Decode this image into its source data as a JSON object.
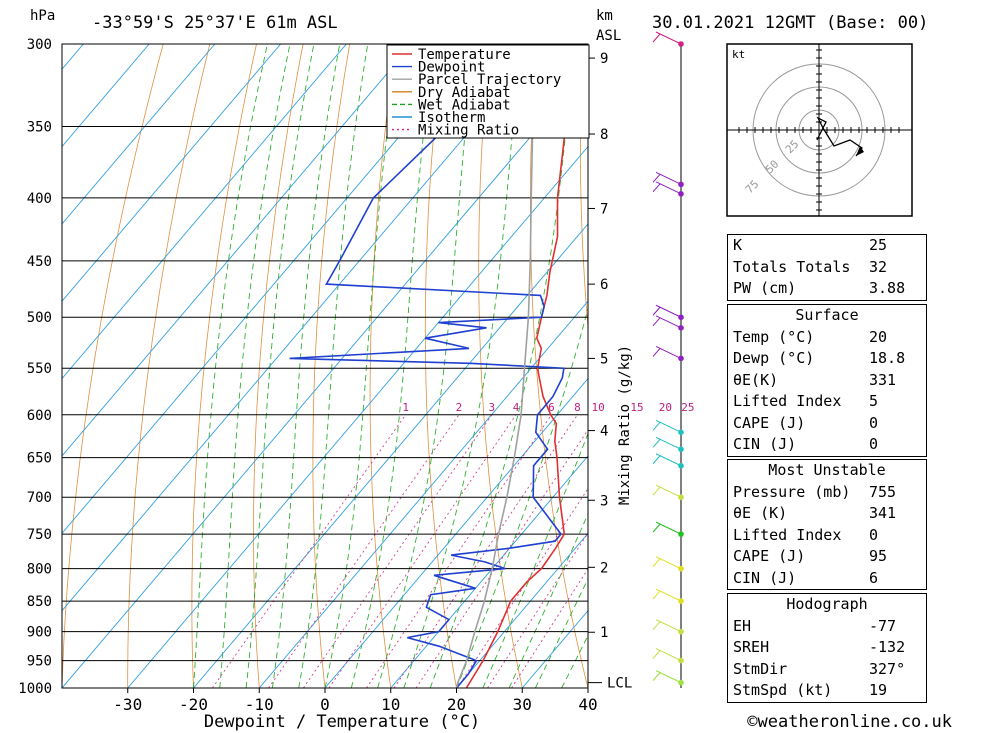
{
  "header": {
    "location": "-33°59'S  25°37'E  61m  ASL",
    "datetime": "30.01.2021  12GMT  (Base: 00)",
    "hpa_unit": "hPa",
    "km_unit": "km",
    "asl_unit": "ASL"
  },
  "footer": {
    "copyright": "©weatheronline.co.uk"
  },
  "chart_data": {
    "type": "line",
    "xlabel": "Dewpoint / Temperature (°C)",
    "ylabel": "hPa",
    "right_label": "Mixing Ratio (g/kg)",
    "xlim": [
      -40,
      40
    ],
    "ylim": [
      1000,
      300
    ],
    "x_ticks": [
      -30,
      -20,
      -10,
      0,
      10,
      20,
      30,
      40
    ],
    "pressure_levels": [
      300,
      350,
      400,
      450,
      500,
      550,
      600,
      650,
      700,
      750,
      800,
      850,
      900,
      950,
      1000
    ],
    "km_ticks": [
      {
        "km": "1",
        "p": 901
      },
      {
        "km": "2",
        "p": 798
      },
      {
        "km": "3",
        "p": 704
      },
      {
        "km": "4",
        "p": 618
      },
      {
        "km": "5",
        "p": 540
      },
      {
        "km": "6",
        "p": 470
      },
      {
        "km": "7",
        "p": 408
      },
      {
        "km": "8",
        "p": 355
      },
      {
        "km": "9",
        "p": 308
      }
    ],
    "lcl_label": "LCL",
    "lcl_p": 990,
    "mixing_ratio_labels": [
      "1",
      "2",
      "3",
      "4",
      "6",
      "8",
      "10",
      "15",
      "20",
      "25"
    ],
    "legend": [
      "Temperature",
      "Dewpoint",
      "Parcel Trajectory",
      "Dry Adiabat",
      "Wet Adiabat",
      "Isotherm",
      "Mixing Ratio"
    ],
    "legend_colors": [
      "#e03030",
      "#2040d0",
      "#a0a0a0",
      "#d08020",
      "#20a020",
      "#2090d0",
      "#d02080"
    ],
    "series": [
      {
        "name": "Temperature",
        "color": "#e03030",
        "points": [
          [
            1000,
            21.5
          ],
          [
            975,
            21
          ],
          [
            950,
            20.5
          ],
          [
            900,
            19
          ],
          [
            850,
            17
          ],
          [
            820,
            17
          ],
          [
            800,
            17.5
          ],
          [
            770,
            17
          ],
          [
            750,
            16.5
          ],
          [
            700,
            11
          ],
          [
            650,
            5.5
          ],
          [
            630,
            3
          ],
          [
            610,
            1
          ],
          [
            600,
            -1
          ],
          [
            580,
            -4.5
          ],
          [
            560,
            -7.5
          ],
          [
            550,
            -9
          ],
          [
            530,
            -11
          ],
          [
            520,
            -13
          ],
          [
            500,
            -15
          ],
          [
            480,
            -17
          ],
          [
            460,
            -19.5
          ],
          [
            430,
            -23
          ],
          [
            400,
            -28
          ],
          [
            350,
            -36
          ],
          [
            320,
            -40
          ],
          [
            300,
            -43
          ]
        ]
      },
      {
        "name": "Dewpoint",
        "color": "#2040d0",
        "points": [
          [
            1000,
            20
          ],
          [
            975,
            20
          ],
          [
            950,
            19.5
          ],
          [
            925,
            12
          ],
          [
            910,
            6
          ],
          [
            900,
            10
          ],
          [
            880,
            10
          ],
          [
            860,
            5
          ],
          [
            840,
            4
          ],
          [
            830,
            10
          ],
          [
            820,
            6
          ],
          [
            810,
            2
          ],
          [
            800,
            12
          ],
          [
            790,
            8
          ],
          [
            780,
            2
          ],
          [
            770,
            10
          ],
          [
            760,
            16
          ],
          [
            750,
            16
          ],
          [
            700,
            7
          ],
          [
            660,
            3
          ],
          [
            640,
            3
          ],
          [
            620,
            -1
          ],
          [
            600,
            -3
          ],
          [
            580,
            -3
          ],
          [
            560,
            -4
          ],
          [
            550,
            -5
          ],
          [
            545,
            -20
          ],
          [
            540,
            -48
          ],
          [
            530,
            -22
          ],
          [
            520,
            -30
          ],
          [
            510,
            -22
          ],
          [
            505,
            -30
          ],
          [
            500,
            -15
          ],
          [
            490,
            -16
          ],
          [
            480,
            -18
          ],
          [
            470,
            -52
          ],
          [
            450,
            -53
          ],
          [
            400,
            -56
          ],
          [
            350,
            -54
          ],
          [
            330,
            -52
          ],
          [
            320,
            -38
          ],
          [
            310,
            -40
          ],
          [
            300,
            -40
          ]
        ]
      },
      {
        "name": "Parcel Trajectory",
        "color": "#a0a0a0",
        "points": [
          [
            1000,
            20
          ],
          [
            990,
            19.5
          ],
          [
            950,
            18
          ],
          [
            900,
            15.5
          ],
          [
            850,
            13
          ],
          [
            800,
            10
          ],
          [
            750,
            6.5
          ],
          [
            700,
            3
          ],
          [
            650,
            -1
          ],
          [
            600,
            -5.5
          ],
          [
            550,
            -11
          ],
          [
            500,
            -17
          ],
          [
            450,
            -24
          ],
          [
            400,
            -32
          ],
          [
            350,
            -41
          ],
          [
            300,
            -52
          ]
        ]
      }
    ]
  },
  "hodograph": {
    "unit": "kt",
    "ring_labels": [
      "25",
      "50",
      "75"
    ]
  },
  "indices": {
    "basic": [
      {
        "label": "K",
        "value": "25"
      },
      {
        "label": "Totals Totals",
        "value": "32"
      },
      {
        "label": "PW (cm)",
        "value": "3.88"
      }
    ],
    "surface_title": "Surface",
    "surface": [
      {
        "label": "Temp (°C)",
        "value": "20"
      },
      {
        "label": "Dewp (°C)",
        "value": "18.8"
      },
      {
        "label": "θE(K)",
        "value": "331"
      },
      {
        "label": "Lifted Index",
        "value": "5"
      },
      {
        "label": "CAPE (J)",
        "value": "0"
      },
      {
        "label": "CIN (J)",
        "value": "0"
      }
    ],
    "mu_title": "Most Unstable",
    "mu": [
      {
        "label": "Pressure (mb)",
        "value": "755"
      },
      {
        "label": "θE (K)",
        "value": "341"
      },
      {
        "label": "Lifted Index",
        "value": "0"
      },
      {
        "label": "CAPE (J)",
        "value": "95"
      },
      {
        "label": "CIN (J)",
        "value": "6"
      }
    ],
    "hodo_title": "Hodograph",
    "hodo": [
      {
        "label": "EH",
        "value": "-77"
      },
      {
        "label": "SREH",
        "value": "-132"
      },
      {
        "label": "StmDir",
        "value": "327°"
      },
      {
        "label": "StmSpd (kt)",
        "value": "19"
      }
    ]
  }
}
